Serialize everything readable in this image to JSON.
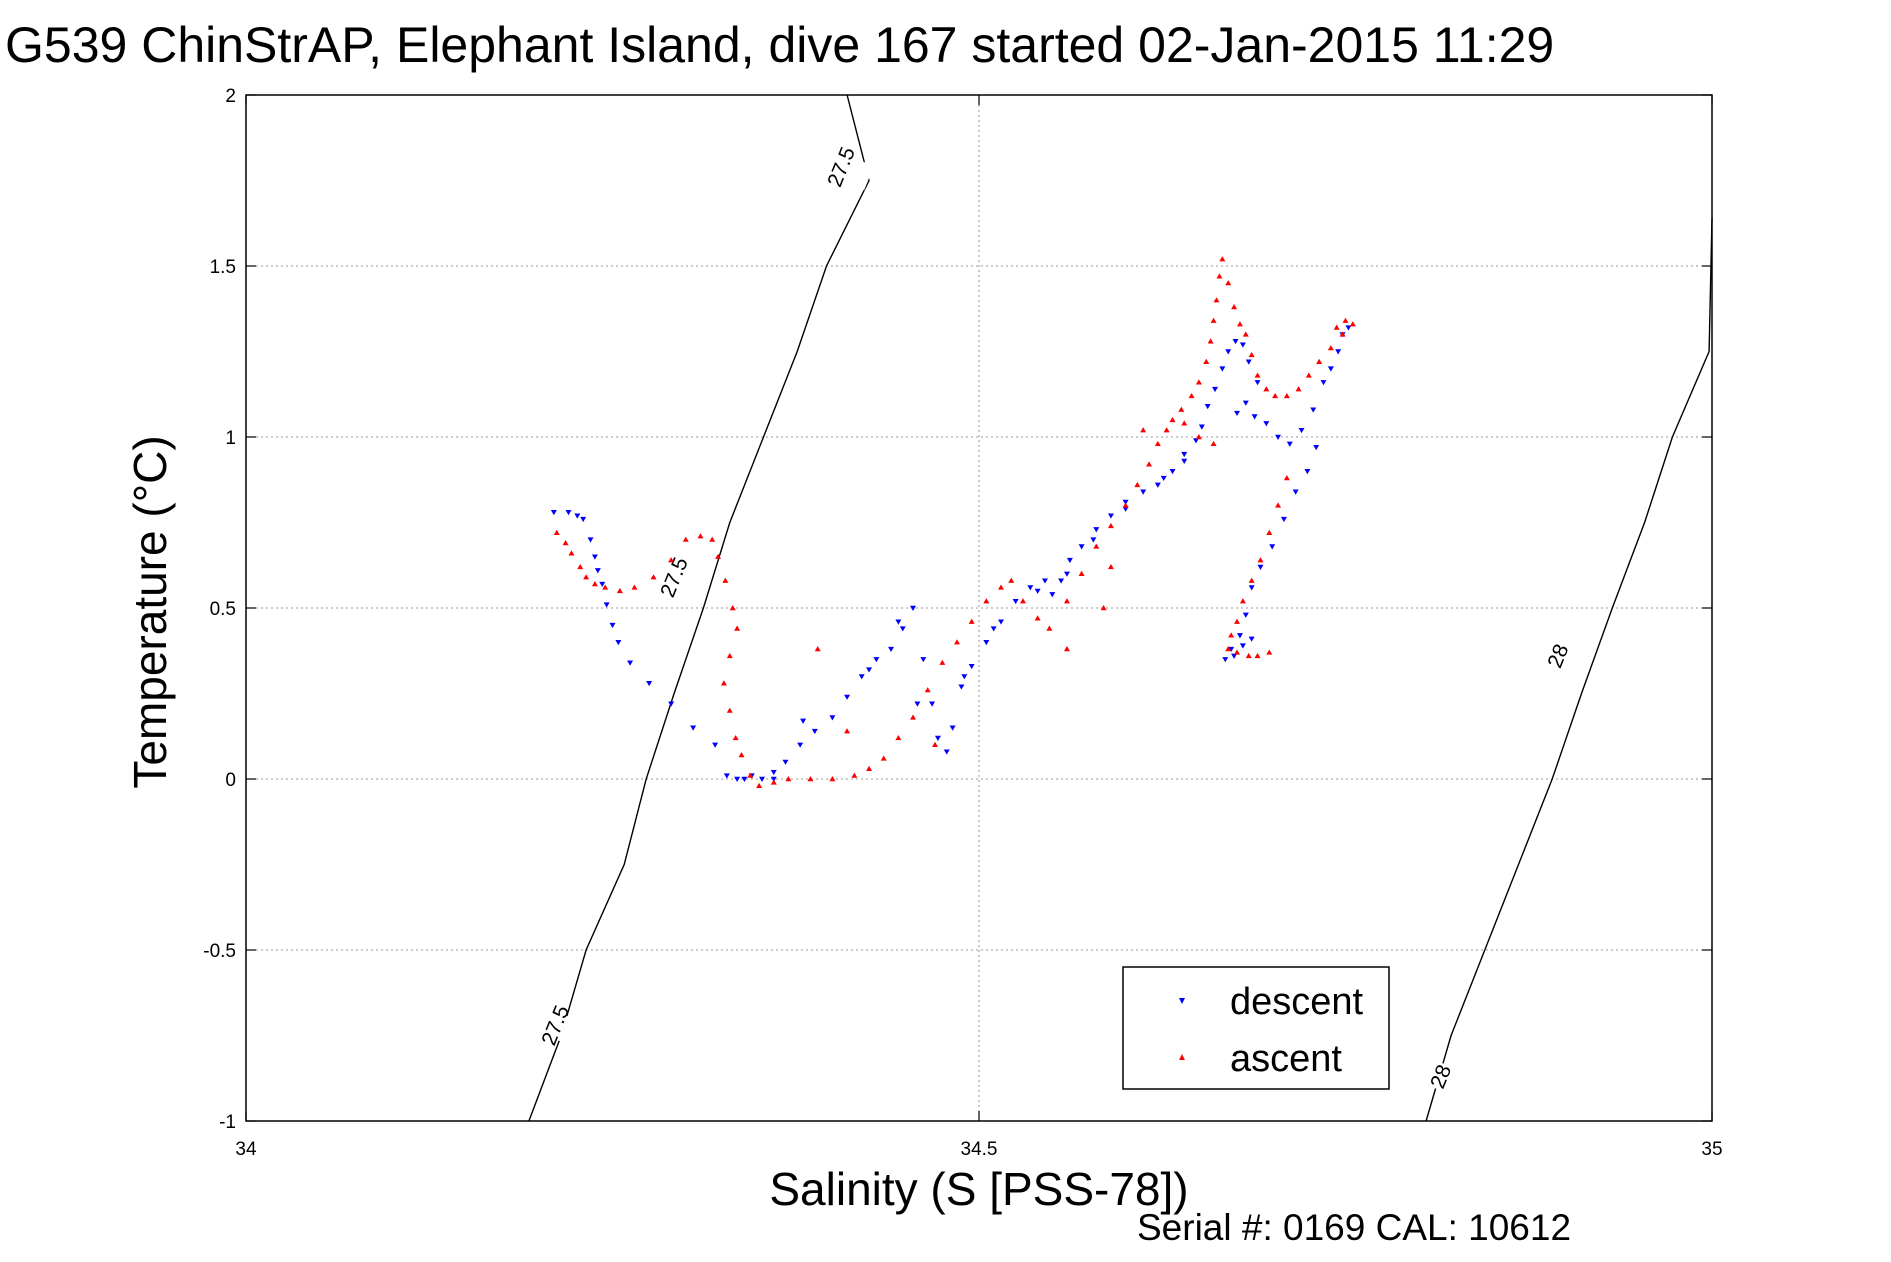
{
  "chart_data": {
    "type": "scatter",
    "title": "G539 ChinStrAP, Elephant Island, dive 167 started 02-Jan-2015 11:29",
    "xlabel": "Salinity (S [PSS-78])",
    "ylabel": "Temperature (°C)",
    "xlim": [
      34,
      35
    ],
    "ylim": [
      -1,
      2
    ],
    "x_ticks": [
      "34",
      "34.5",
      "35"
    ],
    "y_ticks": [
      "-1",
      "-0.5",
      "0",
      "0.5",
      "1",
      "1.5",
      "2"
    ],
    "grid": true,
    "legend_position": "bottom-right",
    "footer": "Serial #: 0169 CAL: 10612",
    "contours": [
      {
        "label": "27.5",
        "points": [
          [
            34.193,
            -1.0
          ],
          [
            34.215,
            -0.75
          ],
          [
            34.232,
            -0.5
          ],
          [
            34.258,
            -0.25
          ],
          [
            34.273,
            0.0
          ],
          [
            34.292,
            0.25
          ],
          [
            34.312,
            0.5
          ],
          [
            34.33,
            0.75
          ],
          [
            34.353,
            1.0
          ],
          [
            34.376,
            1.25
          ],
          [
            34.396,
            1.5
          ],
          [
            34.425,
            1.75
          ],
          [
            34.41,
            2.0
          ]
        ]
      },
      {
        "label": "28",
        "points": [
          [
            34.805,
            -1.0
          ],
          [
            34.822,
            -0.75
          ],
          [
            34.845,
            -0.5
          ],
          [
            34.868,
            -0.25
          ],
          [
            34.891,
            0.0
          ],
          [
            34.911,
            0.25
          ],
          [
            34.932,
            0.5
          ],
          [
            34.954,
            0.75
          ],
          [
            34.973,
            1.0
          ],
          [
            34.998,
            1.25
          ],
          [
            35.0,
            1.64
          ]
        ]
      }
    ],
    "contour_label_positions": [
      {
        "label": "27.5",
        "x": 34.406,
        "y": 1.79
      },
      {
        "label": "27.5",
        "x": 34.292,
        "y": 0.59
      },
      {
        "label": "27.5",
        "x": 34.211,
        "y": -0.72
      },
      {
        "label": "28",
        "x": 34.895,
        "y": 0.36
      },
      {
        "label": "28",
        "x": 34.815,
        "y": -0.87
      }
    ],
    "series": [
      {
        "name": "descent",
        "color": "#0000ff",
        "marker": "triangle-down",
        "points": [
          [
            34.21,
            0.78
          ],
          [
            34.22,
            0.78
          ],
          [
            34.226,
            0.77
          ],
          [
            34.23,
            0.76
          ],
          [
            34.235,
            0.7
          ],
          [
            34.238,
            0.65
          ],
          [
            34.24,
            0.61
          ],
          [
            34.243,
            0.57
          ],
          [
            34.246,
            0.51
          ],
          [
            34.25,
            0.45
          ],
          [
            34.254,
            0.4
          ],
          [
            34.262,
            0.34
          ],
          [
            34.275,
            0.28
          ],
          [
            34.29,
            0.22
          ],
          [
            34.305,
            0.15
          ],
          [
            34.32,
            0.1
          ],
          [
            34.328,
            0.01
          ],
          [
            34.335,
            0.0
          ],
          [
            34.345,
            0.01
          ],
          [
            34.352,
            0.0
          ],
          [
            34.36,
            0.02
          ],
          [
            34.368,
            0.05
          ],
          [
            34.378,
            0.1
          ],
          [
            34.388,
            0.14
          ],
          [
            34.4,
            0.18
          ],
          [
            34.41,
            0.24
          ],
          [
            34.42,
            0.3
          ],
          [
            34.43,
            0.35
          ],
          [
            34.44,
            0.38
          ],
          [
            34.448,
            0.44
          ],
          [
            34.455,
            0.5
          ],
          [
            34.462,
            0.35
          ],
          [
            34.468,
            0.22
          ],
          [
            34.472,
            0.12
          ],
          [
            34.478,
            0.08
          ],
          [
            34.482,
            0.15
          ],
          [
            34.488,
            0.27
          ],
          [
            34.495,
            0.33
          ],
          [
            34.505,
            0.4
          ],
          [
            34.515,
            0.46
          ],
          [
            34.525,
            0.52
          ],
          [
            34.535,
            0.56
          ],
          [
            34.545,
            0.58
          ],
          [
            34.55,
            0.54
          ],
          [
            34.556,
            0.58
          ],
          [
            34.562,
            0.64
          ],
          [
            34.57,
            0.68
          ],
          [
            34.58,
            0.73
          ],
          [
            34.59,
            0.77
          ],
          [
            34.6,
            0.81
          ],
          [
            34.612,
            0.84
          ],
          [
            34.622,
            0.86
          ],
          [
            34.632,
            0.9
          ],
          [
            34.64,
            0.95
          ],
          [
            34.648,
            0.99
          ],
          [
            34.652,
            1.03
          ],
          [
            34.656,
            1.09
          ],
          [
            34.661,
            1.14
          ],
          [
            34.666,
            1.2
          ],
          [
            34.67,
            1.25
          ],
          [
            34.675,
            1.28
          ],
          [
            34.68,
            1.27
          ],
          [
            34.684,
            1.22
          ],
          [
            34.69,
            1.16
          ],
          [
            34.682,
            1.1
          ],
          [
            34.676,
            1.07
          ],
          [
            34.688,
            1.06
          ],
          [
            34.696,
            1.04
          ],
          [
            34.704,
            1.0
          ],
          [
            34.712,
            0.98
          ],
          [
            34.72,
            1.02
          ],
          [
            34.728,
            1.08
          ],
          [
            34.735,
            1.16
          ],
          [
            34.74,
            1.2
          ],
          [
            34.745,
            1.25
          ],
          [
            34.748,
            1.3
          ],
          [
            34.752,
            1.32
          ],
          [
            34.73,
            0.97
          ],
          [
            34.724,
            0.9
          ],
          [
            34.716,
            0.84
          ],
          [
            34.708,
            0.76
          ],
          [
            34.7,
            0.68
          ],
          [
            34.692,
            0.62
          ],
          [
            34.686,
            0.56
          ],
          [
            34.682,
            0.48
          ],
          [
            34.678,
            0.42
          ],
          [
            34.672,
            0.38
          ],
          [
            34.668,
            0.35
          ],
          [
            34.674,
            0.36
          ],
          [
            34.68,
            0.39
          ],
          [
            34.686,
            0.41
          ],
          [
            34.64,
            0.93
          ],
          [
            34.626,
            0.88
          ],
          [
            34.6,
            0.79
          ],
          [
            34.578,
            0.7
          ],
          [
            34.56,
            0.6
          ],
          [
            34.54,
            0.55
          ],
          [
            34.51,
            0.44
          ],
          [
            34.49,
            0.3
          ],
          [
            34.458,
            0.22
          ],
          [
            34.445,
            0.46
          ],
          [
            34.425,
            0.32
          ],
          [
            34.38,
            0.17
          ],
          [
            34.36,
            0.0
          ],
          [
            34.34,
            0.0
          ]
        ]
      },
      {
        "name": "ascent",
        "color": "#ff0000",
        "marker": "triangle-up",
        "points": [
          [
            34.212,
            0.72
          ],
          [
            34.218,
            0.69
          ],
          [
            34.222,
            0.66
          ],
          [
            34.228,
            0.62
          ],
          [
            34.232,
            0.59
          ],
          [
            34.238,
            0.57
          ],
          [
            34.245,
            0.56
          ],
          [
            34.255,
            0.55
          ],
          [
            34.265,
            0.56
          ],
          [
            34.278,
            0.59
          ],
          [
            34.29,
            0.64
          ],
          [
            34.3,
            0.7
          ],
          [
            34.31,
            0.71
          ],
          [
            34.318,
            0.7
          ],
          [
            34.322,
            0.65
          ],
          [
            34.327,
            0.58
          ],
          [
            34.332,
            0.5
          ],
          [
            34.335,
            0.44
          ],
          [
            34.33,
            0.36
          ],
          [
            34.326,
            0.28
          ],
          [
            34.33,
            0.2
          ],
          [
            34.334,
            0.12
          ],
          [
            34.338,
            0.07
          ],
          [
            34.344,
            0.01
          ],
          [
            34.35,
            -0.02
          ],
          [
            34.36,
            -0.01
          ],
          [
            34.37,
            0.0
          ],
          [
            34.385,
            0.0
          ],
          [
            34.4,
            0.0
          ],
          [
            34.415,
            0.01
          ],
          [
            34.425,
            0.03
          ],
          [
            34.435,
            0.06
          ],
          [
            34.445,
            0.12
          ],
          [
            34.455,
            0.18
          ],
          [
            34.465,
            0.26
          ],
          [
            34.475,
            0.34
          ],
          [
            34.485,
            0.4
          ],
          [
            34.495,
            0.46
          ],
          [
            34.505,
            0.52
          ],
          [
            34.515,
            0.56
          ],
          [
            34.522,
            0.58
          ],
          [
            34.53,
            0.52
          ],
          [
            34.54,
            0.47
          ],
          [
            34.548,
            0.44
          ],
          [
            34.56,
            0.52
          ],
          [
            34.57,
            0.6
          ],
          [
            34.58,
            0.68
          ],
          [
            34.59,
            0.74
          ],
          [
            34.6,
            0.8
          ],
          [
            34.608,
            0.86
          ],
          [
            34.616,
            0.92
          ],
          [
            34.622,
            0.98
          ],
          [
            34.628,
            1.02
          ],
          [
            34.632,
            1.05
          ],
          [
            34.638,
            1.08
          ],
          [
            34.645,
            1.12
          ],
          [
            34.65,
            1.16
          ],
          [
            34.655,
            1.22
          ],
          [
            34.658,
            1.28
          ],
          [
            34.66,
            1.34
          ],
          [
            34.662,
            1.4
          ],
          [
            34.664,
            1.47
          ],
          [
            34.666,
            1.52
          ],
          [
            34.67,
            1.45
          ],
          [
            34.674,
            1.38
          ],
          [
            34.678,
            1.33
          ],
          [
            34.682,
            1.3
          ],
          [
            34.686,
            1.24
          ],
          [
            34.69,
            1.18
          ],
          [
            34.696,
            1.14
          ],
          [
            34.702,
            1.12
          ],
          [
            34.71,
            1.12
          ],
          [
            34.718,
            1.14
          ],
          [
            34.725,
            1.18
          ],
          [
            34.732,
            1.22
          ],
          [
            34.74,
            1.26
          ],
          [
            34.748,
            1.3
          ],
          [
            34.755,
            1.33
          ],
          [
            34.75,
            1.34
          ],
          [
            34.744,
            1.32
          ],
          [
            34.71,
            0.88
          ],
          [
            34.704,
            0.8
          ],
          [
            34.698,
            0.72
          ],
          [
            34.692,
            0.64
          ],
          [
            34.686,
            0.58
          ],
          [
            34.68,
            0.52
          ],
          [
            34.676,
            0.46
          ],
          [
            34.672,
            0.42
          ],
          [
            34.67,
            0.38
          ],
          [
            34.676,
            0.37
          ],
          [
            34.684,
            0.36
          ],
          [
            34.69,
            0.36
          ],
          [
            34.698,
            0.37
          ],
          [
            34.66,
            0.98
          ],
          [
            34.65,
            1.0
          ],
          [
            34.64,
            1.04
          ],
          [
            34.612,
            1.02
          ],
          [
            34.59,
            0.62
          ],
          [
            34.585,
            0.5
          ],
          [
            34.56,
            0.38
          ],
          [
            34.47,
            0.1
          ],
          [
            34.41,
            0.14
          ],
          [
            34.39,
            0.38
          ]
        ]
      }
    ]
  }
}
